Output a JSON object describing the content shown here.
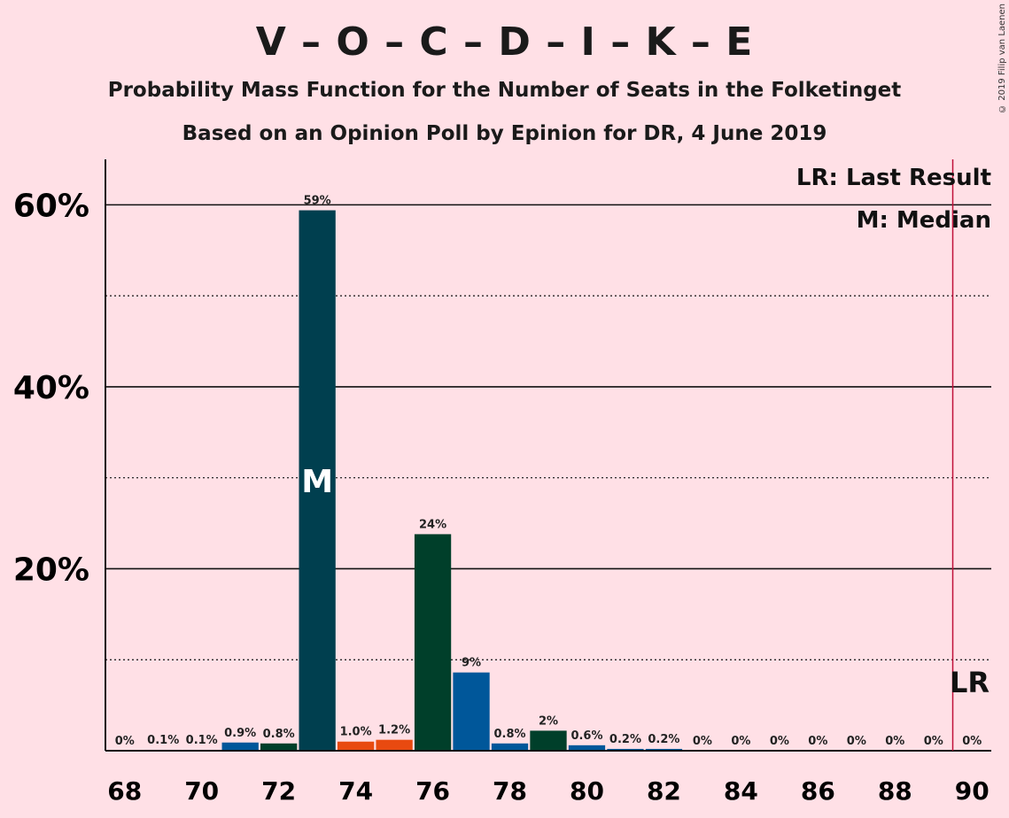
{
  "title": "V – O – C – D – I – K – E",
  "subtitle_1": "Probability Mass Function for the Number of Seats in the Folketinget",
  "subtitle_2": "Based on an Opinion Poll by Epinion for DR, 4 June 2019",
  "copyright": "© 2019 Filip van Laenen",
  "legend": {
    "last_result": "LR: Last Result",
    "median": "M: Median"
  },
  "markers": {
    "median_label": "M",
    "last_result_label": "LR"
  },
  "colors": {
    "background": "#FFE0E6",
    "last_result_line": "#C0103A",
    "series": [
      "#003F4F",
      "#00579A",
      "#E84A10",
      "#003F2A"
    ]
  },
  "chart_data": {
    "type": "bar",
    "x": [
      68,
      69,
      70,
      71,
      72,
      73,
      74,
      75,
      76,
      77,
      78,
      79,
      80,
      81,
      82,
      83,
      84,
      85,
      86,
      87,
      88,
      89,
      90
    ],
    "values": [
      0,
      0.1,
      0.1,
      0.9,
      0.8,
      59.4,
      1.0,
      1.2,
      23.8,
      8.6,
      0.8,
      2.2,
      0.6,
      0.2,
      0.2,
      0,
      0,
      0,
      0,
      0,
      0,
      0,
      0
    ],
    "data_labels": [
      "0%",
      "0.1%",
      "0.1%",
      "0.9%",
      "0.8%",
      "59%",
      "1.0%",
      "1.2%",
      "24%",
      "9%",
      "0.8%",
      "2%",
      "0.6%",
      "0.2%",
      "0.2%",
      "0%",
      "0%",
      "0%",
      "0%",
      "0%",
      "0%",
      "0%",
      "0%"
    ],
    "bar_colors": [
      "#00579A",
      "#00579A",
      "#00579A",
      "#00579A",
      "#003F2A",
      "#003F4F",
      "#E84A10",
      "#E84A10",
      "#003F2A",
      "#00579A",
      "#00579A",
      "#003F2A",
      "#00579A",
      "#00579A",
      "#00579A",
      "#00579A",
      "#00579A",
      "#00579A",
      "#00579A",
      "#00579A",
      "#00579A",
      "#00579A",
      "#00579A"
    ],
    "x_tick_labels": [
      "68",
      "70",
      "72",
      "74",
      "76",
      "78",
      "80",
      "82",
      "84",
      "86",
      "88",
      "90"
    ],
    "y_tick_labels": [
      "20%",
      "40%",
      "60%"
    ],
    "y_ticks": [
      20,
      40,
      60
    ],
    "ylim": [
      0,
      65
    ],
    "xlim": [
      67.5,
      90.5
    ],
    "median_seat": 73,
    "last_result_seat": 89.5,
    "gridlines": {
      "solid": [
        20,
        40,
        60
      ],
      "dotted": [
        10,
        30,
        50
      ]
    },
    "legend_position": "top-right"
  }
}
